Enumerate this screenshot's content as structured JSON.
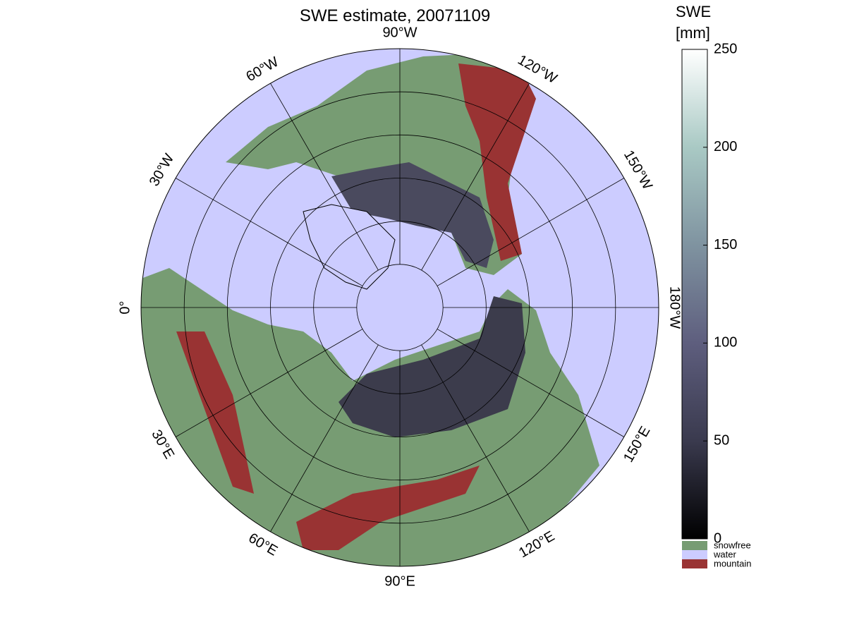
{
  "title": "SWE estimate, 20071109",
  "colorbar": {
    "label": [
      "SWE",
      "[mm]"
    ],
    "lim": [
      0,
      250
    ],
    "ticks": [
      0,
      50,
      100,
      150,
      200,
      250
    ],
    "colors": [
      "#000000",
      "#3a3a4e",
      "#5e5e7e",
      "#7f93a0",
      "#a9c9c4",
      "#ffffff"
    ]
  },
  "legend": [
    {
      "name": "snowfree",
      "color": "#779c73"
    },
    {
      "name": "water",
      "color": "#ccccff"
    },
    {
      "name": "mountain",
      "color": "#993333"
    }
  ],
  "meridian_labels": [
    "0°",
    "30°W",
    "60°W",
    "90°W",
    "120°W",
    "150°W",
    "180°W",
    "150°E",
    "120°E",
    "90°E",
    "60°E",
    "30°E"
  ]
}
